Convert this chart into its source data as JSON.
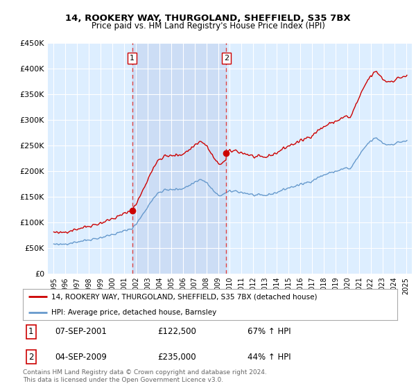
{
  "title": "14, ROOKERY WAY, THURGOLAND, SHEFFIELD, S35 7BX",
  "subtitle": "Price paid vs. HM Land Registry's House Price Index (HPI)",
  "legend_line1": "14, ROOKERY WAY, THURGOLAND, SHEFFIELD, S35 7BX (detached house)",
  "legend_line2": "HPI: Average price, detached house, Barnsley",
  "footnote": "Contains HM Land Registry data © Crown copyright and database right 2024.\nThis data is licensed under the Open Government Licence v3.0.",
  "sale1_label": "1",
  "sale1_date": "07-SEP-2001",
  "sale1_price": "£122,500",
  "sale1_hpi": "67% ↑ HPI",
  "sale2_label": "2",
  "sale2_date": "04-SEP-2009",
  "sale2_price": "£235,000",
  "sale2_hpi": "44% ↑ HPI",
  "sale1_x": 2001.69,
  "sale1_y": 122500,
  "sale2_x": 2009.69,
  "sale2_y": 235000,
  "hpi_color": "#6699cc",
  "price_color": "#cc0000",
  "marker_color": "#cc0000",
  "vline_color": "#dd4444",
  "bg_color": "#ddeeff",
  "shade_color": "#ccddf5",
  "ylim": [
    0,
    450000
  ],
  "xlim": [
    1994.5,
    2025.5
  ],
  "yticks": [
    0,
    50000,
    100000,
    150000,
    200000,
    250000,
    300000,
    350000,
    400000,
    450000
  ],
  "ytick_labels": [
    "£0",
    "£50K",
    "£100K",
    "£150K",
    "£200K",
    "£250K",
    "£300K",
    "£350K",
    "£400K",
    "£450K"
  ],
  "xticks": [
    1995,
    1996,
    1997,
    1998,
    1999,
    2000,
    2001,
    2002,
    2003,
    2004,
    2005,
    2006,
    2007,
    2008,
    2009,
    2010,
    2011,
    2012,
    2013,
    2014,
    2015,
    2016,
    2017,
    2018,
    2019,
    2020,
    2021,
    2022,
    2023,
    2024,
    2025
  ]
}
